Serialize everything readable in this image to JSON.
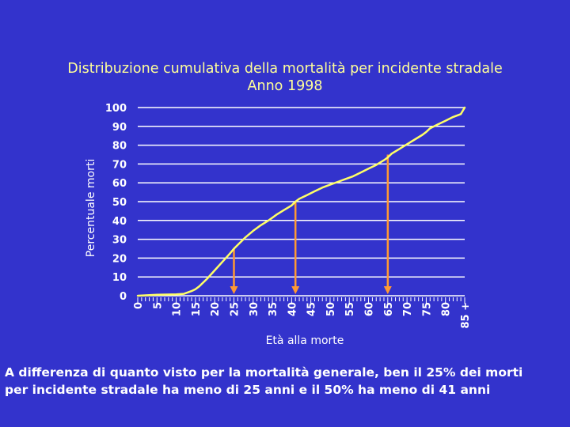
{
  "chart_data": {
    "type": "line",
    "title": [
      "Distribuzione cumulativa della mortalità per incidente stradale",
      "Anno 1998"
    ],
    "xlabel": "Età alla morte",
    "ylabel": "Percentuale morti",
    "x_tick_labels": [
      "0",
      "5",
      "10",
      "15",
      "20",
      "25",
      "30",
      "35",
      "40",
      "45",
      "50",
      "55",
      "60",
      "65",
      "70",
      "75",
      "80",
      "85 +"
    ],
    "y_ticks": [
      0,
      10,
      20,
      30,
      40,
      50,
      60,
      70,
      80,
      90,
      100
    ],
    "ylim": [
      0,
      100
    ],
    "xlim": [
      0,
      85
    ],
    "grid": "horizontal",
    "x": [
      0,
      5,
      10,
      12,
      14,
      15,
      16,
      18,
      20,
      22,
      24,
      25,
      26,
      28,
      30,
      32,
      34,
      35,
      36,
      38,
      40,
      41,
      42,
      44,
      46,
      48,
      50,
      52,
      54,
      56,
      58,
      60,
      62,
      64,
      65,
      66,
      68,
      70,
      72,
      74,
      75,
      76,
      78,
      80,
      82,
      84,
      85
    ],
    "y": [
      0,
      0.5,
      0.7,
      1,
      2.5,
      3.5,
      5,
      9,
      13.5,
      18,
      22.5,
      25,
      27,
      31,
      34.5,
      37.5,
      40,
      41.5,
      43,
      45.5,
      48,
      50,
      51.5,
      53.5,
      55.5,
      57.5,
      59,
      60.5,
      62,
      63.5,
      65.5,
      67.5,
      69.5,
      72,
      73.5,
      75.5,
      78,
      80.5,
      83,
      85.5,
      87,
      89,
      91,
      93,
      95,
      96.5,
      100
    ],
    "reference_markers": [
      {
        "x": 25,
        "y": 25
      },
      {
        "x": 41,
        "y": 50
      },
      {
        "x": 65,
        "y": 75
      }
    ],
    "colors": {
      "background": "#3333cc",
      "line": "#ffff66",
      "grid": "#ffffff",
      "marker": "#ff9933",
      "title": "#ffff99",
      "axis_text": "#ffffff"
    }
  },
  "caption": [
    "A differenza di quanto visto per la mortalità generale, ben il 25% dei morti",
    "per incidente stradale ha meno di 25 anni e il 50% ha meno di 41 anni"
  ]
}
